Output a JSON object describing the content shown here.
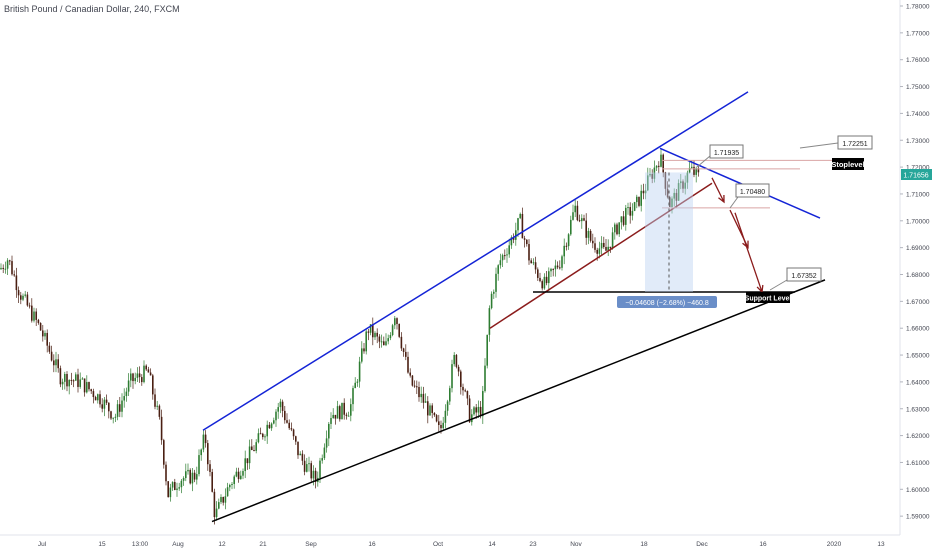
{
  "header": {
    "title": "British Pound / Canadian Dollar, 240, FXCM"
  },
  "colors": {
    "up_candle": "#2e7d32",
    "down_candle": "#4a1f12",
    "channel_line": "#1424d6",
    "support_line": "#000000",
    "inner_trend_line": "#8b1c1c",
    "projection_arrow": "#8b1c1c",
    "price_tag": "#26a69a",
    "label_box_bg": "#000000",
    "measure_box_bg": "#6a8ec8"
  },
  "price_axis": {
    "ticks": [
      "1.78000",
      "1.77000",
      "1.76000",
      "1.75000",
      "1.74000",
      "1.73000",
      "1.72000",
      "1.71000",
      "1.70000",
      "1.69000",
      "1.68000",
      "1.67000",
      "1.66000",
      "1.65000",
      "1.64000",
      "1.63000",
      "1.62000",
      "1.61000",
      "1.60000",
      "1.59000"
    ],
    "current_price": "1.71656"
  },
  "time_axis": {
    "ticks": [
      "Jul",
      "15",
      "13:00",
      "Aug",
      "12",
      "21",
      "Sep",
      "16",
      "Oct",
      "14",
      "23",
      "Nov",
      "18",
      "Dec",
      "16",
      "2020",
      "13"
    ]
  },
  "annotations": {
    "stoplevel_value": "1.72251",
    "stoplevel_label": "Stoplevel",
    "peak_value": "1.71935",
    "mid_value": "1.70480",
    "target_value": "1.67352",
    "support_label": "Support Level",
    "measure_text": "−0.04608 (−2.68%) −460.8"
  },
  "chart_data": {
    "type": "candlestick",
    "title": "British Pound / Canadian Dollar, 240, FXCM",
    "xlabel": "",
    "ylabel": "",
    "ylim": [
      1.585,
      1.78
    ],
    "grid": false,
    "legend": "none",
    "close_path": [
      [
        0,
        1.682
      ],
      [
        8,
        1.686
      ],
      [
        20,
        1.673
      ],
      [
        40,
        1.66
      ],
      [
        60,
        1.642
      ],
      [
        80,
        1.64
      ],
      [
        100,
        1.634
      ],
      [
        115,
        1.627
      ],
      [
        130,
        1.64
      ],
      [
        148,
        1.644
      ],
      [
        160,
        1.624
      ],
      [
        168,
        1.598
      ],
      [
        180,
        1.604
      ],
      [
        195,
        1.605
      ],
      [
        205,
        1.62
      ],
      [
        215,
        1.59
      ],
      [
        230,
        1.602
      ],
      [
        255,
        1.616
      ],
      [
        280,
        1.632
      ],
      [
        300,
        1.612
      ],
      [
        316,
        1.603
      ],
      [
        330,
        1.628
      ],
      [
        350,
        1.63
      ],
      [
        368,
        1.66
      ],
      [
        385,
        1.652
      ],
      [
        395,
        1.666
      ],
      [
        410,
        1.64
      ],
      [
        425,
        1.632
      ],
      [
        440,
        1.621
      ],
      [
        455,
        1.65
      ],
      [
        470,
        1.627
      ],
      [
        482,
        1.63
      ],
      [
        490,
        1.67
      ],
      [
        500,
        1.685
      ],
      [
        510,
        1.692
      ],
      [
        520,
        1.7
      ],
      [
        530,
        1.685
      ],
      [
        545,
        1.676
      ],
      [
        560,
        1.685
      ],
      [
        575,
        1.705
      ],
      [
        590,
        1.693
      ],
      [
        605,
        1.688
      ],
      [
        620,
        1.7
      ],
      [
        635,
        1.705
      ],
      [
        650,
        1.716
      ],
      [
        660,
        1.724
      ],
      [
        670,
        1.706
      ],
      [
        680,
        1.712
      ],
      [
        690,
        1.719
      ],
      [
        700,
        1.716
      ]
    ],
    "channel_upper": [
      [
        203,
        1.622
      ],
      [
        748,
        1.748
      ]
    ],
    "channel_lower": [
      [
        212,
        1.588
      ],
      [
        825,
        1.678
      ]
    ],
    "inner_trend": [
      [
        490,
        1.66
      ],
      [
        712,
        1.714
      ]
    ],
    "descending_line": [
      [
        660,
        1.727
      ],
      [
        820,
        1.701
      ]
    ],
    "horizontal_levels": [
      {
        "label": "stoplevel",
        "value": 1.72251
      },
      {
        "label": "peak",
        "value": 1.71935
      },
      {
        "label": "mid",
        "value": 1.7048
      },
      {
        "label": "support",
        "value": 1.6735
      }
    ]
  }
}
